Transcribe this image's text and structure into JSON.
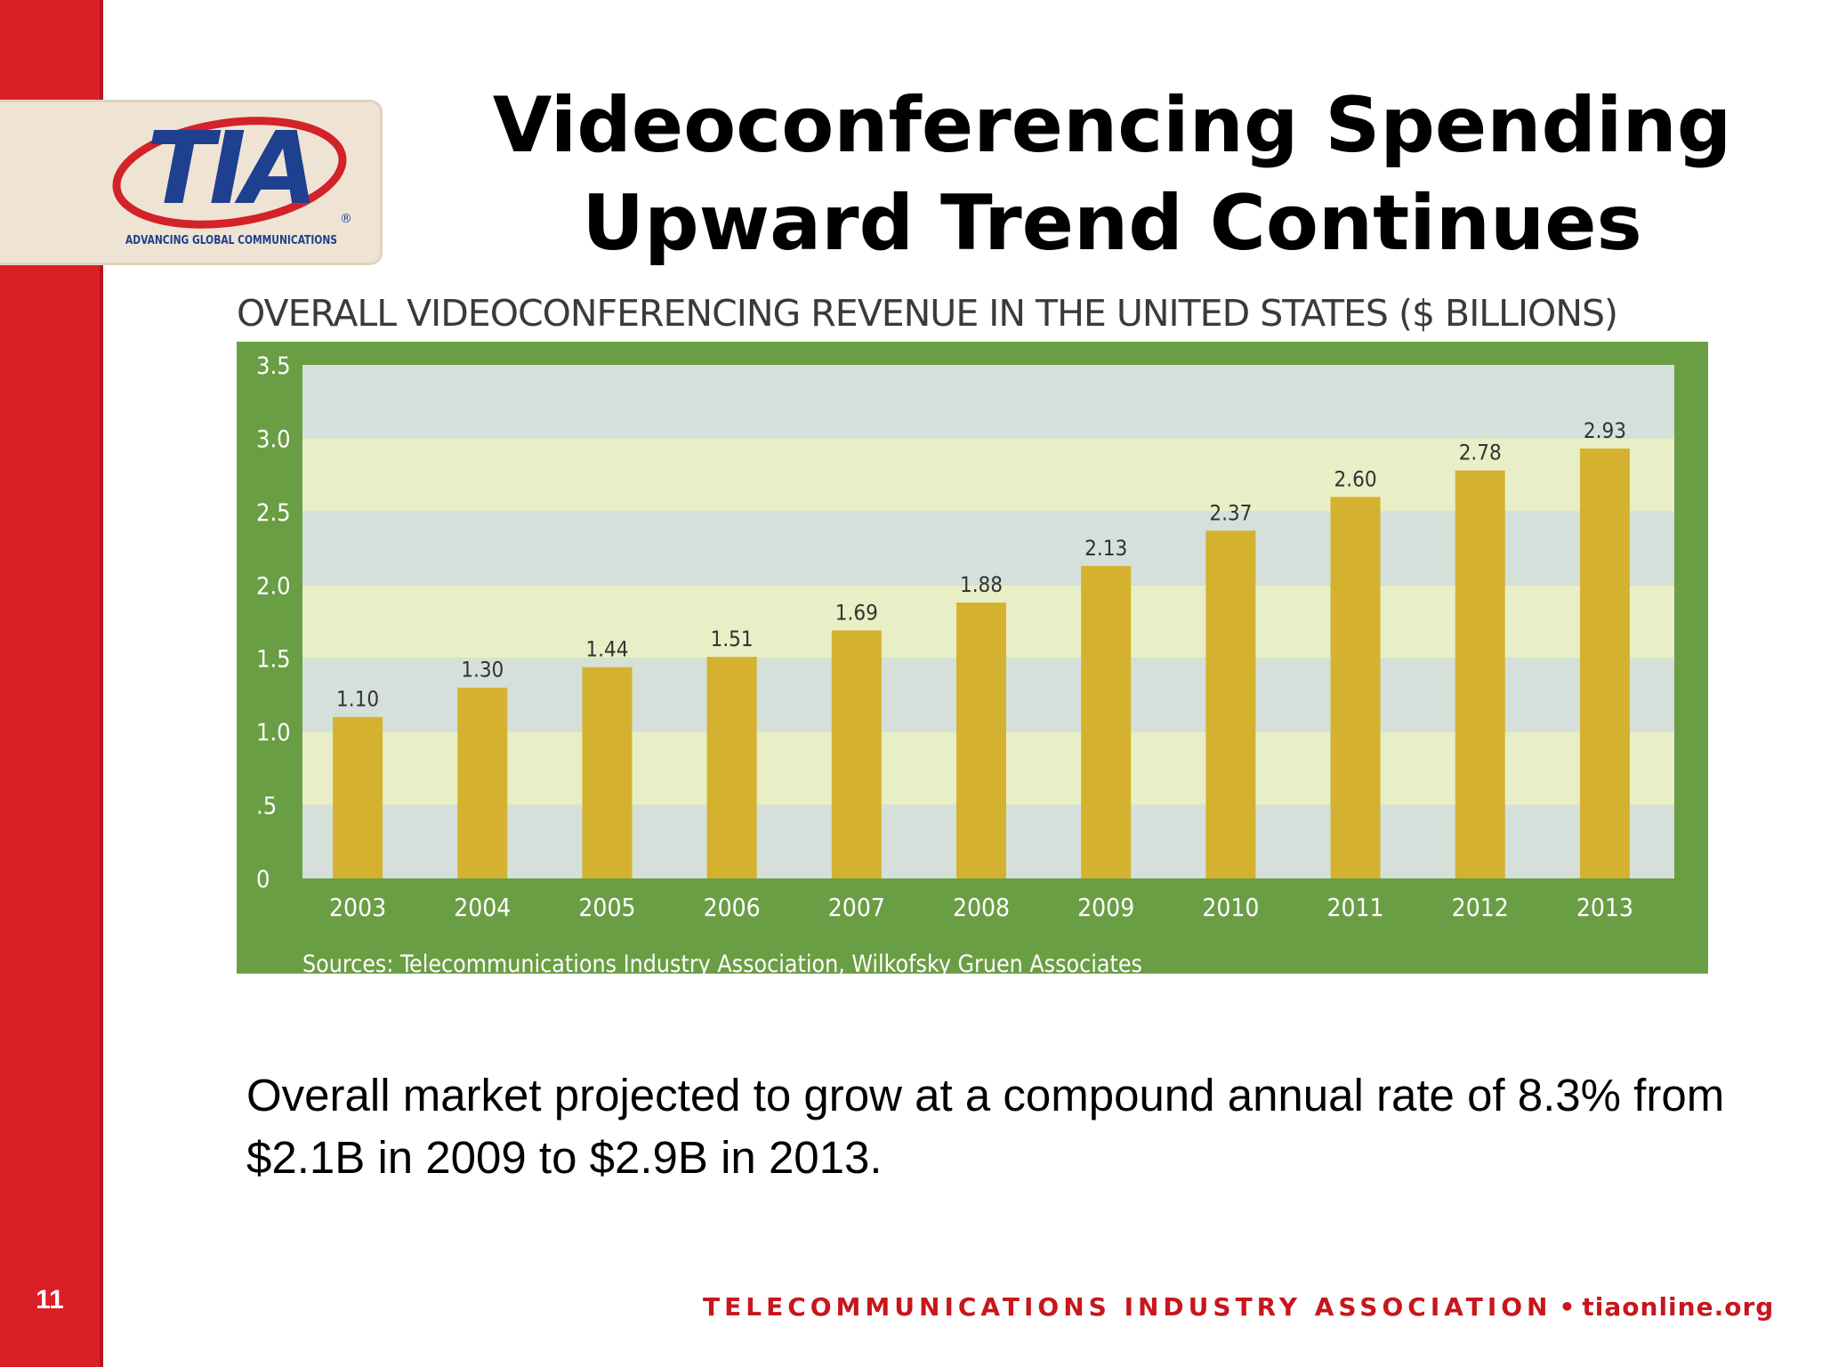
{
  "slide": {
    "number": "11",
    "title_line1": "Videoconferencing Spending",
    "title_line2": "Upward Trend Continues",
    "body_text": "Overall market projected to grow at a compound annual rate of 8.3% from $2.1B in 2009 to $2.9B in 2013."
  },
  "logo": {
    "text": "TIA",
    "tagline": "ADVANCING GLOBAL COMMUNICATIONS",
    "registered": "®"
  },
  "footer": {
    "org": "TELECOMMUNICATIONS INDUSTRY ASSOCIATION",
    "separator": "•",
    "url": "tiaonline.org"
  },
  "colors": {
    "sidebar": "#db1f26",
    "chart_frame": "#6a9e44",
    "bar": "#d4b22f",
    "band_light": "#e8efc6",
    "band_grey": "#d6e0da",
    "logo_blue": "#1f3f8f",
    "logo_red": "#d3222a"
  },
  "chart_data": {
    "type": "bar",
    "title": "OVERALL VIDEOCONFERENCING REVENUE IN THE UNITED STATES ($ BILLIONS)",
    "categories": [
      "2003",
      "2004",
      "2005",
      "2006",
      "2007",
      "2008",
      "2009",
      "2010",
      "2011",
      "2012",
      "2013"
    ],
    "values": [
      1.1,
      1.3,
      1.44,
      1.51,
      1.69,
      1.88,
      2.13,
      2.37,
      2.6,
      2.78,
      2.93
    ],
    "value_labels": [
      "1.10",
      "1.30",
      "1.44",
      "1.51",
      "1.69",
      "1.88",
      "2.13",
      "2.37",
      "2.60",
      "2.78",
      "2.93"
    ],
    "yticks": [
      {
        "value": 0,
        "label": "0"
      },
      {
        "value": 0.5,
        "label": ".5"
      },
      {
        "value": 1.0,
        "label": "1.0"
      },
      {
        "value": 1.5,
        "label": "1.5"
      },
      {
        "value": 2.0,
        "label": "2.0"
      },
      {
        "value": 2.5,
        "label": "2.5"
      },
      {
        "value": 3.0,
        "label": "3.0"
      },
      {
        "value": 3.5,
        "label": "3.5"
      }
    ],
    "ylim": [
      0,
      3.5
    ],
    "xlabel": "",
    "ylabel": "",
    "grid": "horizontal bands",
    "legend": "none",
    "source": "Sources: Telecommunications Industry Association, Wilkofsky Gruen Associates"
  }
}
